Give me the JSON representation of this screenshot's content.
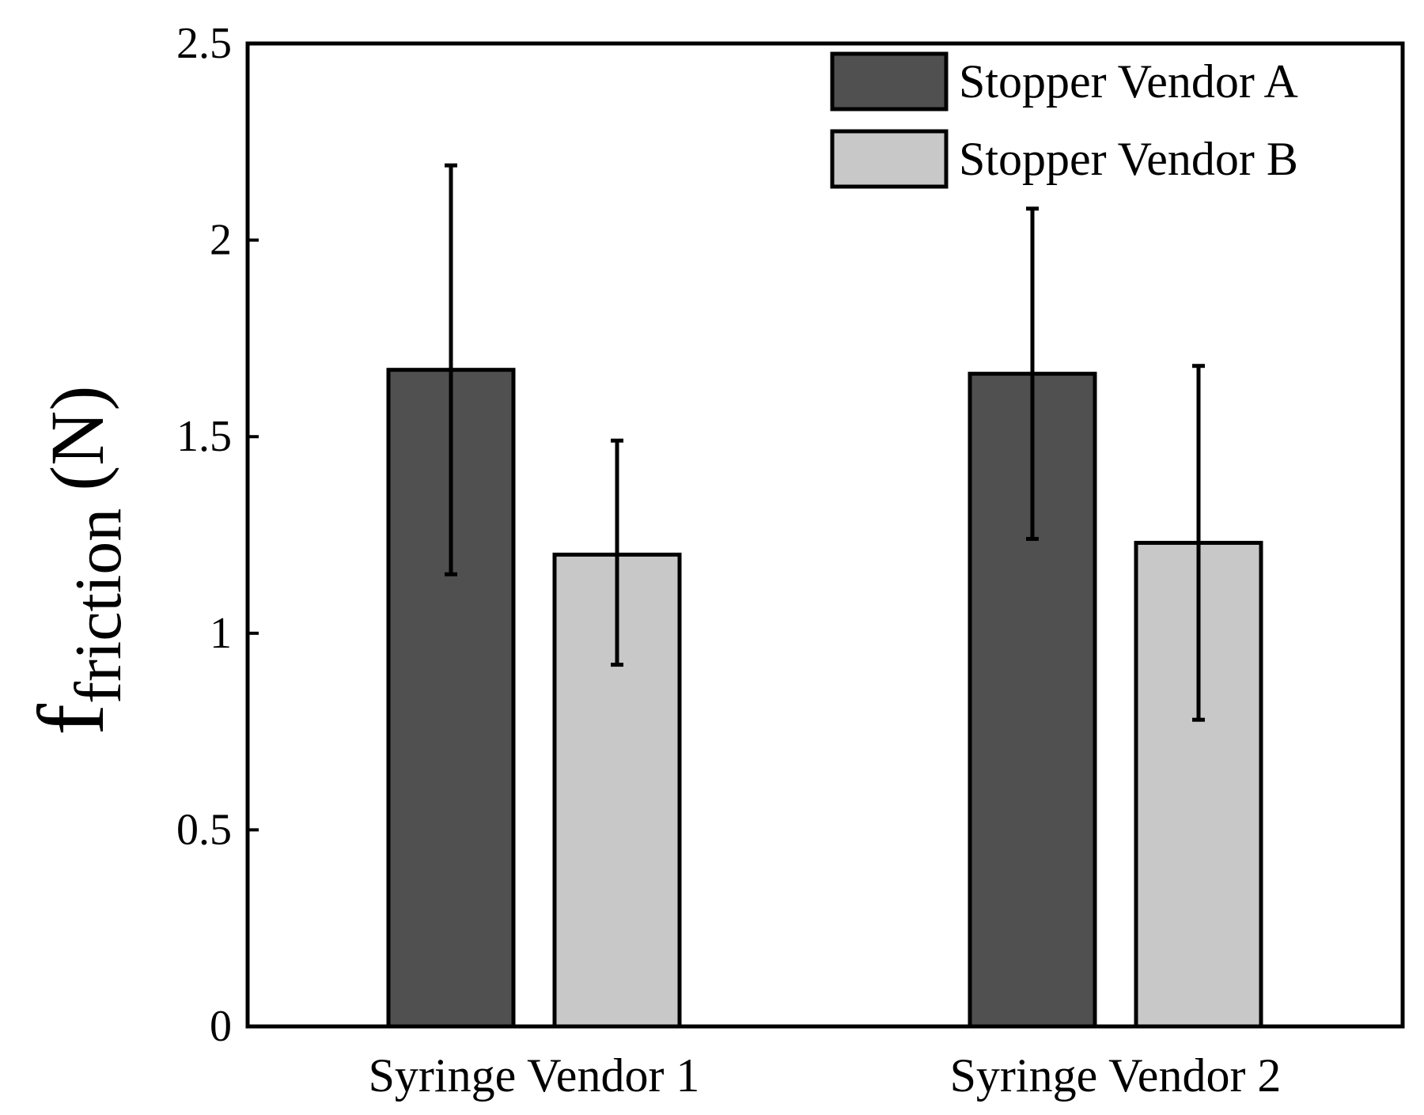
{
  "chart_data": {
    "type": "bar",
    "title": "",
    "xlabel": "",
    "ylabel": {
      "main": "f",
      "subscript": "friction",
      "unit": "(N)"
    },
    "ylim": [
      0,
      2.5
    ],
    "yticks": [
      "0",
      "0.5",
      "1",
      "1.5",
      "2",
      "2.5"
    ],
    "categories": [
      "Syringe Vendor 1",
      "Syringe Vendor 2"
    ],
    "series": [
      {
        "name": "Stopper Vendor A",
        "color": "#505050",
        "values": [
          1.67,
          1.66
        ],
        "error_low": [
          1.15,
          1.24
        ],
        "error_high": [
          2.19,
          2.08
        ]
      },
      {
        "name": "Stopper Vendor B",
        "color": "#c8c8c8",
        "values": [
          1.2,
          1.23
        ],
        "error_low": [
          0.92,
          0.78
        ],
        "error_high": [
          1.49,
          1.68
        ]
      }
    ],
    "legend_position": "top-right",
    "grid": false
  }
}
